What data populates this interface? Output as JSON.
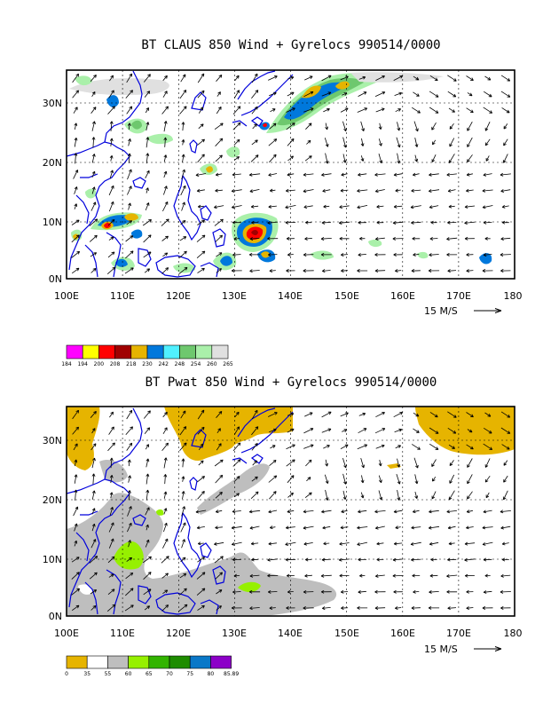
{
  "chart_data": [
    {
      "type": "heatmap",
      "title": "BT CLAUS 850 Wind + Gyrelocs 990514/0000",
      "x_ticks": [
        "100E",
        "110E",
        "120E",
        "130E",
        "140E",
        "150E",
        "160E",
        "170E",
        "180"
      ],
      "y_ticks": [
        "0N",
        "10N",
        "20N",
        "30N"
      ],
      "x_range": [
        100,
        180
      ],
      "y_range": [
        0,
        35
      ],
      "vector_scale_label": "15 M/S",
      "colorbar_labels": [
        "184",
        "194",
        "200",
        "208",
        "218",
        "230",
        "242",
        "248",
        "254",
        "260",
        "265"
      ],
      "colorbar_colors": [
        "#ff00ff",
        "#ffff00",
        "#ff0000",
        "#a00000",
        "#e6b400",
        "#0078dc",
        "#50f0ff",
        "#6ec86e",
        "#aaf0aa",
        "#e0e0e0"
      ],
      "grid": true
    },
    {
      "type": "heatmap",
      "title": "BT Pwat 850 Wind + Gyrelocs 990514/0000",
      "x_ticks": [
        "100E",
        "110E",
        "120E",
        "130E",
        "140E",
        "150E",
        "160E",
        "170E",
        "180"
      ],
      "y_ticks": [
        "0N",
        "10N",
        "20N",
        "30N"
      ],
      "x_range": [
        100,
        180
      ],
      "y_range": [
        0,
        35
      ],
      "vector_scale_label": "15 M/S",
      "colorbar_labels": [
        "0",
        "35",
        "55",
        "60",
        "65",
        "70",
        "75",
        "80",
        "85.89"
      ],
      "colorbar_colors": [
        "#e6b400",
        "#ffffff",
        "#bebebe",
        "#96f000",
        "#32b400",
        "#1e8c00",
        "#0a78c8",
        "#8c00c8"
      ],
      "grid": true
    }
  ]
}
